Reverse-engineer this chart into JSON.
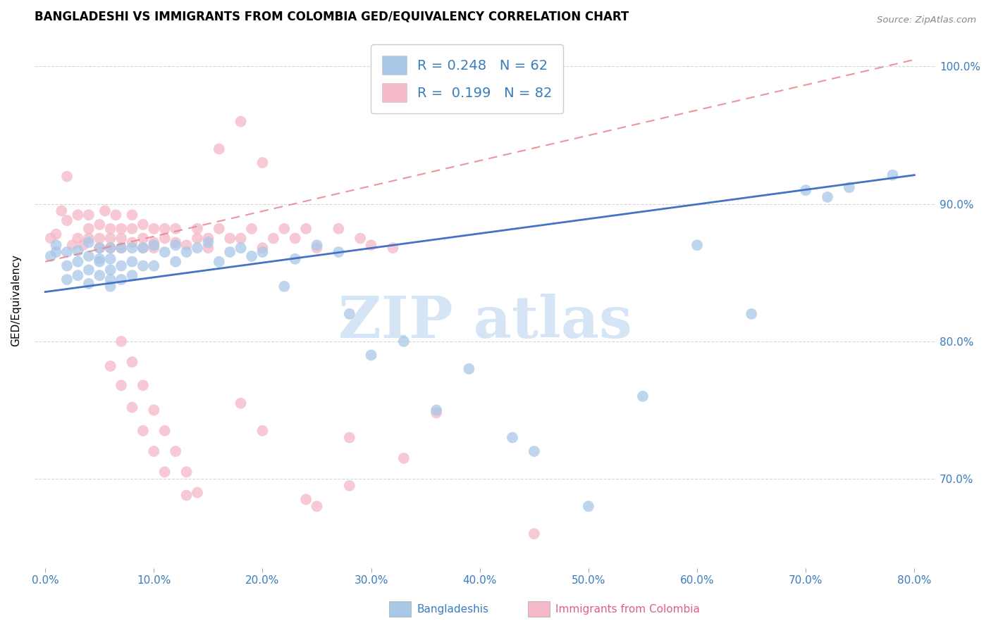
{
  "title": "BANGLADESHI VS IMMIGRANTS FROM COLOMBIA GED/EQUIVALENCY CORRELATION CHART",
  "source_text": "Source: ZipAtlas.com",
  "xlabel_blue": "Bangladeshis",
  "xlabel_pink": "Immigrants from Colombia",
  "ylabel": "GED/Equivalency",
  "xlim": [
    -0.01,
    0.82
  ],
  "ylim": [
    0.635,
    1.025
  ],
  "yticks": [
    0.7,
    0.8,
    0.9,
    1.0
  ],
  "xticks": [
    0.0,
    0.1,
    0.2,
    0.3,
    0.4,
    0.5,
    0.6,
    0.7,
    0.8
  ],
  "legend_blue_r": "R = 0.248",
  "legend_blue_n": "N = 62",
  "legend_pink_r": "R = 0.199",
  "legend_pink_n": "N = 82",
  "blue_color": "#a8c8e8",
  "pink_color": "#f4b8c8",
  "blue_line_color": "#4472c4",
  "pink_line_color": "#e8848a",
  "watermark_color": "#d5e5f5",
  "background_color": "#ffffff",
  "blue_scatter_x": [
    0.005,
    0.01,
    0.01,
    0.02,
    0.02,
    0.02,
    0.03,
    0.03,
    0.03,
    0.04,
    0.04,
    0.04,
    0.04,
    0.05,
    0.05,
    0.05,
    0.05,
    0.06,
    0.06,
    0.06,
    0.06,
    0.06,
    0.07,
    0.07,
    0.07,
    0.08,
    0.08,
    0.08,
    0.09,
    0.09,
    0.1,
    0.1,
    0.11,
    0.12,
    0.12,
    0.13,
    0.14,
    0.15,
    0.16,
    0.17,
    0.18,
    0.19,
    0.2,
    0.22,
    0.23,
    0.25,
    0.27,
    0.28,
    0.3,
    0.33,
    0.36,
    0.39,
    0.43,
    0.45,
    0.5,
    0.55,
    0.6,
    0.65,
    0.7,
    0.72,
    0.74,
    0.78
  ],
  "blue_scatter_y": [
    0.862,
    0.87,
    0.865,
    0.865,
    0.855,
    0.845,
    0.866,
    0.858,
    0.848,
    0.872,
    0.862,
    0.852,
    0.842,
    0.868,
    0.86,
    0.858,
    0.848,
    0.868,
    0.86,
    0.852,
    0.845,
    0.84,
    0.868,
    0.855,
    0.845,
    0.868,
    0.858,
    0.848,
    0.868,
    0.855,
    0.87,
    0.855,
    0.865,
    0.87,
    0.858,
    0.865,
    0.868,
    0.872,
    0.858,
    0.865,
    0.868,
    0.862,
    0.865,
    0.84,
    0.86,
    0.87,
    0.865,
    0.82,
    0.79,
    0.8,
    0.75,
    0.78,
    0.73,
    0.72,
    0.68,
    0.76,
    0.87,
    0.82,
    0.91,
    0.905,
    0.912,
    0.921
  ],
  "pink_scatter_x": [
    0.005,
    0.01,
    0.015,
    0.02,
    0.02,
    0.025,
    0.03,
    0.03,
    0.035,
    0.04,
    0.04,
    0.04,
    0.05,
    0.05,
    0.05,
    0.055,
    0.06,
    0.06,
    0.06,
    0.065,
    0.07,
    0.07,
    0.07,
    0.08,
    0.08,
    0.08,
    0.09,
    0.09,
    0.09,
    0.1,
    0.1,
    0.1,
    0.11,
    0.11,
    0.12,
    0.12,
    0.13,
    0.14,
    0.14,
    0.15,
    0.15,
    0.16,
    0.17,
    0.18,
    0.19,
    0.2,
    0.21,
    0.22,
    0.23,
    0.24,
    0.25,
    0.27,
    0.29,
    0.3,
    0.32,
    0.16,
    0.18,
    0.2,
    0.06,
    0.07,
    0.08,
    0.09,
    0.1,
    0.11,
    0.13,
    0.07,
    0.08,
    0.09,
    0.1,
    0.11,
    0.12,
    0.13,
    0.14,
    0.24,
    0.25,
    0.28,
    0.33,
    0.18,
    0.2,
    0.28,
    0.36,
    0.45
  ],
  "pink_scatter_y": [
    0.875,
    0.878,
    0.895,
    0.888,
    0.92,
    0.87,
    0.875,
    0.892,
    0.87,
    0.875,
    0.882,
    0.892,
    0.868,
    0.875,
    0.885,
    0.895,
    0.868,
    0.875,
    0.882,
    0.892,
    0.868,
    0.875,
    0.882,
    0.872,
    0.882,
    0.892,
    0.875,
    0.885,
    0.868,
    0.872,
    0.882,
    0.868,
    0.875,
    0.882,
    0.872,
    0.882,
    0.87,
    0.875,
    0.882,
    0.868,
    0.875,
    0.882,
    0.875,
    0.875,
    0.882,
    0.868,
    0.875,
    0.882,
    0.875,
    0.882,
    0.868,
    0.882,
    0.875,
    0.87,
    0.868,
    0.94,
    0.96,
    0.93,
    0.782,
    0.768,
    0.752,
    0.735,
    0.72,
    0.705,
    0.688,
    0.8,
    0.785,
    0.768,
    0.75,
    0.735,
    0.72,
    0.705,
    0.69,
    0.685,
    0.68,
    0.695,
    0.715,
    0.755,
    0.735,
    0.73,
    0.748,
    0.66
  ],
  "blue_trend_x": [
    0.0,
    0.8
  ],
  "blue_trend_y": [
    0.836,
    0.921
  ],
  "pink_trend_x": [
    0.0,
    0.8
  ],
  "pink_trend_y": [
    0.858,
    1.005
  ],
  "title_fontsize": 12,
  "axis_label_fontsize": 11,
  "tick_fontsize": 11,
  "legend_fontsize": 14
}
